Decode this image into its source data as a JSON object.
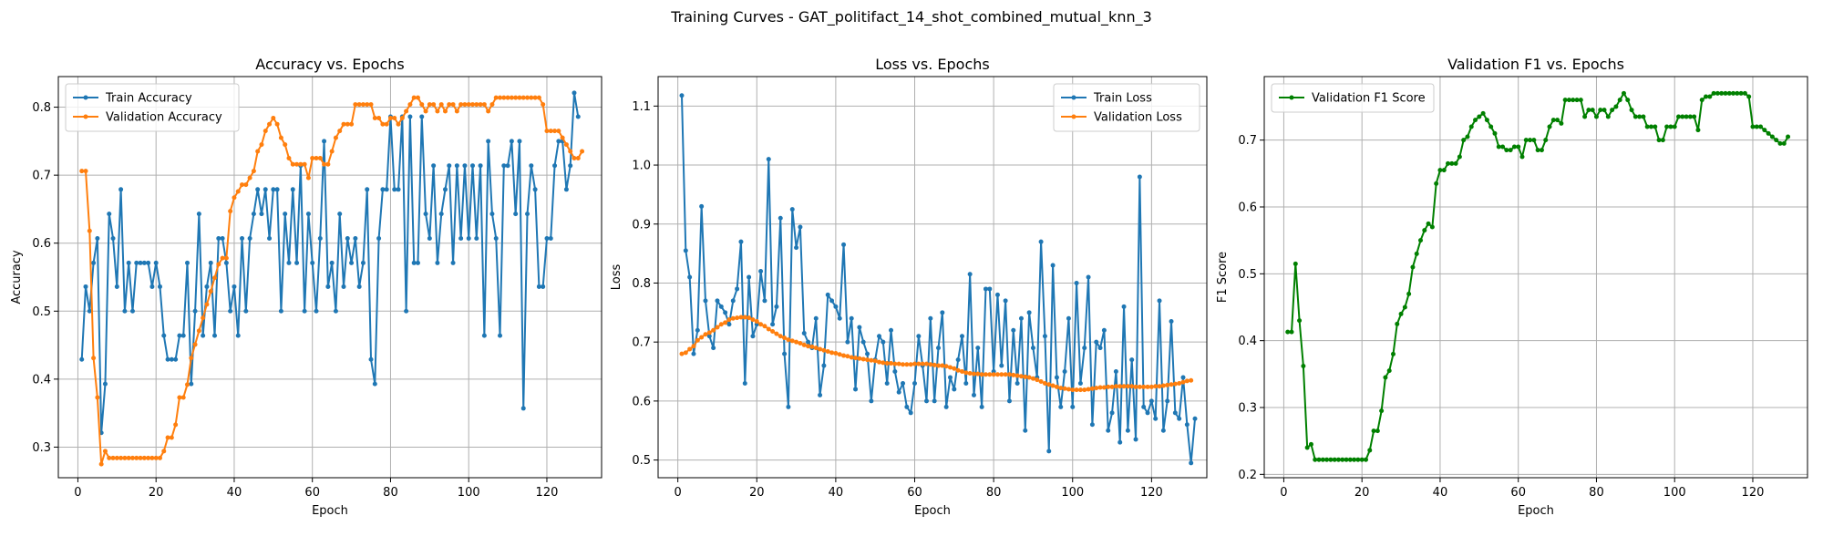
{
  "figure_title": "Training Curves - GAT_politifact_14_shot_combined_mutual_knn_3",
  "chart_data": [
    {
      "type": "line",
      "title": "Accuracy vs. Epochs",
      "xlabel": "Epoch",
      "ylabel": "Accuracy",
      "xlim": [
        -5,
        134
      ],
      "ylim": [
        0.255,
        0.845
      ],
      "xticks": [
        0,
        20,
        40,
        60,
        80,
        100,
        120
      ],
      "yticks": [
        0.3,
        0.4,
        0.5,
        0.6,
        0.7,
        0.8
      ],
      "ytick_labels": [
        "0.3",
        "0.4",
        "0.5",
        "0.6",
        "0.7",
        "0.8"
      ],
      "grid": true,
      "legend_position": "upper-left",
      "series": [
        {
          "name": "Train Accuracy",
          "color": "#1f77b4",
          "values": [
            0.429,
            0.536,
            0.5,
            0.571,
            0.607,
            0.321,
            0.393,
            0.643,
            0.607,
            0.536,
            0.679,
            0.5,
            0.571,
            0.5,
            0.571,
            0.571,
            0.571,
            0.571,
            0.536,
            0.571,
            0.536,
            0.464,
            0.429,
            0.429,
            0.429,
            0.464,
            0.464,
            0.571,
            0.393,
            0.5,
            0.643,
            0.464,
            0.536,
            0.571,
            0.464,
            0.607,
            0.607,
            0.571,
            0.5,
            0.536,
            0.464,
            0.607,
            0.5,
            0.607,
            0.643,
            0.679,
            0.643,
            0.679,
            0.607,
            0.679,
            0.679,
            0.5,
            0.643,
            0.571,
            0.679,
            0.571,
            0.714,
            0.5,
            0.643,
            0.571,
            0.5,
            0.607,
            0.75,
            0.536,
            0.571,
            0.5,
            0.643,
            0.536,
            0.607,
            0.571,
            0.607,
            0.536,
            0.571,
            0.679,
            0.429,
            0.393,
            0.607,
            0.679,
            0.679,
            0.786,
            0.679,
            0.679,
            0.786,
            0.5,
            0.786,
            0.571,
            0.571,
            0.786,
            0.643,
            0.607,
            0.714,
            0.571,
            0.643,
            0.679,
            0.714,
            0.571,
            0.714,
            0.607,
            0.714,
            0.607,
            0.714,
            0.607,
            0.714,
            0.464,
            0.75,
            0.643,
            0.607,
            0.464,
            0.714,
            0.714,
            0.75,
            0.643,
            0.75,
            0.357,
            0.643,
            0.714,
            0.679,
            0.536,
            0.536,
            0.607,
            0.607,
            0.714,
            0.75,
            0.75,
            0.679,
            0.714,
            0.821,
            0.786
          ]
        },
        {
          "name": "Validation Accuracy",
          "color": "#ff7f0e",
          "values": [
            0.706,
            0.706,
            0.618,
            0.431,
            0.373,
            0.275,
            0.294,
            0.284,
            0.284,
            0.284,
            0.284,
            0.284,
            0.284,
            0.284,
            0.284,
            0.284,
            0.284,
            0.284,
            0.284,
            0.284,
            0.284,
            0.294,
            0.314,
            0.314,
            0.333,
            0.373,
            0.373,
            0.392,
            0.431,
            0.451,
            0.471,
            0.49,
            0.51,
            0.529,
            0.549,
            0.569,
            0.578,
            0.578,
            0.647,
            0.667,
            0.676,
            0.686,
            0.686,
            0.696,
            0.706,
            0.735,
            0.745,
            0.765,
            0.775,
            0.784,
            0.775,
            0.755,
            0.745,
            0.725,
            0.716,
            0.716,
            0.716,
            0.716,
            0.696,
            0.725,
            0.725,
            0.725,
            0.716,
            0.716,
            0.735,
            0.755,
            0.765,
            0.775,
            0.775,
            0.775,
            0.804,
            0.804,
            0.804,
            0.804,
            0.804,
            0.784,
            0.784,
            0.775,
            0.775,
            0.784,
            0.784,
            0.775,
            0.784,
            0.794,
            0.804,
            0.814,
            0.814,
            0.804,
            0.794,
            0.804,
            0.804,
            0.794,
            0.804,
            0.794,
            0.804,
            0.804,
            0.794,
            0.804,
            0.804,
            0.804,
            0.804,
            0.804,
            0.804,
            0.804,
            0.794,
            0.804,
            0.814,
            0.814,
            0.814,
            0.814,
            0.814,
            0.814,
            0.814,
            0.814,
            0.814,
            0.814,
            0.814,
            0.814,
            0.804,
            0.765,
            0.765,
            0.765,
            0.765,
            0.755,
            0.745,
            0.735,
            0.725,
            0.725,
            0.735
          ]
        }
      ]
    },
    {
      "type": "line",
      "title": "Loss vs. Epochs",
      "xlabel": "Epoch",
      "ylabel": "Loss",
      "xlim": [
        -5,
        134
      ],
      "ylim": [
        0.47,
        1.15
      ],
      "xticks": [
        0,
        20,
        40,
        60,
        80,
        100,
        120
      ],
      "yticks": [
        0.5,
        0.6,
        0.7,
        0.8,
        0.9,
        1.0,
        1.1
      ],
      "ytick_labels": [
        "0.5",
        "0.6",
        "0.7",
        "0.8",
        "0.9",
        "1.0",
        "1.1"
      ],
      "grid": true,
      "legend_position": "upper-right",
      "series": [
        {
          "name": "Train Loss",
          "color": "#1f77b4",
          "values": [
            1.118,
            0.855,
            0.81,
            0.68,
            0.72,
            0.93,
            0.77,
            0.71,
            0.69,
            0.77,
            0.76,
            0.75,
            0.73,
            0.77,
            0.79,
            0.87,
            0.63,
            0.81,
            0.71,
            0.73,
            0.82,
            0.77,
            1.01,
            0.73,
            0.76,
            0.91,
            0.68,
            0.59,
            0.925,
            0.86,
            0.895,
            0.715,
            0.7,
            0.69,
            0.74,
            0.61,
            0.66,
            0.78,
            0.77,
            0.76,
            0.74,
            0.865,
            0.7,
            0.74,
            0.62,
            0.725,
            0.7,
            0.68,
            0.6,
            0.67,
            0.71,
            0.7,
            0.63,
            0.72,
            0.65,
            0.615,
            0.63,
            0.59,
            0.58,
            0.63,
            0.71,
            0.66,
            0.6,
            0.74,
            0.6,
            0.69,
            0.75,
            0.59,
            0.64,
            0.62,
            0.67,
            0.71,
            0.63,
            0.815,
            0.61,
            0.69,
            0.59,
            0.79,
            0.79,
            0.65,
            0.78,
            0.66,
            0.77,
            0.6,
            0.72,
            0.63,
            0.74,
            0.55,
            0.75,
            0.69,
            0.64,
            0.87,
            0.71,
            0.515,
            0.83,
            0.64,
            0.59,
            0.65,
            0.74,
            0.59,
            0.8,
            0.63,
            0.69,
            0.81,
            0.56,
            0.7,
            0.69,
            0.72,
            0.55,
            0.58,
            0.65,
            0.53,
            0.76,
            0.55,
            0.67,
            0.535,
            0.98,
            0.59,
            0.58,
            0.6,
            0.57,
            0.77,
            0.55,
            0.6,
            0.735,
            0.58,
            0.57,
            0.64,
            0.56,
            0.495,
            0.57
          ]
        },
        {
          "name": "Validation Loss",
          "color": "#ff7f0e",
          "values": [
            0.68,
            0.682,
            0.688,
            0.693,
            0.703,
            0.708,
            0.713,
            0.716,
            0.72,
            0.725,
            0.73,
            0.733,
            0.738,
            0.74,
            0.741,
            0.742,
            0.742,
            0.741,
            0.738,
            0.735,
            0.73,
            0.727,
            0.722,
            0.718,
            0.714,
            0.71,
            0.707,
            0.704,
            0.702,
            0.7,
            0.698,
            0.695,
            0.693,
            0.692,
            0.69,
            0.688,
            0.686,
            0.684,
            0.682,
            0.681,
            0.679,
            0.677,
            0.676,
            0.674,
            0.673,
            0.672,
            0.671,
            0.67,
            0.669,
            0.668,
            0.666,
            0.665,
            0.664,
            0.664,
            0.663,
            0.663,
            0.662,
            0.662,
            0.662,
            0.663,
            0.663,
            0.663,
            0.663,
            0.662,
            0.661,
            0.66,
            0.66,
            0.659,
            0.657,
            0.655,
            0.652,
            0.65,
            0.648,
            0.647,
            0.646,
            0.646,
            0.645,
            0.645,
            0.645,
            0.645,
            0.645,
            0.645,
            0.645,
            0.645,
            0.644,
            0.643,
            0.642,
            0.641,
            0.64,
            0.638,
            0.636,
            0.633,
            0.63,
            0.628,
            0.626,
            0.624,
            0.622,
            0.621,
            0.62,
            0.619,
            0.619,
            0.619,
            0.619,
            0.62,
            0.621,
            0.622,
            0.623,
            0.623,
            0.624,
            0.624,
            0.625,
            0.625,
            0.625,
            0.625,
            0.625,
            0.624,
            0.624,
            0.624,
            0.624,
            0.624,
            0.625,
            0.625,
            0.626,
            0.627,
            0.628,
            0.629,
            0.63,
            0.632,
            0.634,
            0.635
          ]
        }
      ]
    },
    {
      "type": "line",
      "title": "Validation F1 vs. Epochs",
      "xlabel": "Epoch",
      "ylabel": "F1 Score",
      "xlim": [
        -5,
        134
      ],
      "ylim": [
        0.195,
        0.795
      ],
      "xticks": [
        0,
        20,
        40,
        60,
        80,
        100,
        120
      ],
      "yticks": [
        0.2,
        0.3,
        0.4,
        0.5,
        0.6,
        0.7
      ],
      "ytick_labels": [
        "0.2",
        "0.3",
        "0.4",
        "0.5",
        "0.6",
        "0.7"
      ],
      "grid": true,
      "legend_position": "upper-left",
      "series": [
        {
          "name": "Validation F1 Score",
          "color": "#008000",
          "values": [
            0.413,
            0.413,
            0.515,
            0.43,
            0.362,
            0.24,
            0.245,
            0.222,
            0.222,
            0.222,
            0.222,
            0.222,
            0.222,
            0.222,
            0.222,
            0.222,
            0.222,
            0.222,
            0.222,
            0.222,
            0.222,
            0.236,
            0.265,
            0.265,
            0.295,
            0.345,
            0.355,
            0.38,
            0.425,
            0.44,
            0.45,
            0.47,
            0.51,
            0.53,
            0.55,
            0.565,
            0.575,
            0.57,
            0.635,
            0.655,
            0.655,
            0.665,
            0.665,
            0.665,
            0.675,
            0.7,
            0.705,
            0.72,
            0.73,
            0.735,
            0.74,
            0.73,
            0.72,
            0.71,
            0.69,
            0.69,
            0.685,
            0.685,
            0.69,
            0.69,
            0.675,
            0.7,
            0.7,
            0.7,
            0.685,
            0.685,
            0.7,
            0.72,
            0.73,
            0.73,
            0.725,
            0.76,
            0.76,
            0.76,
            0.76,
            0.76,
            0.735,
            0.745,
            0.745,
            0.735,
            0.745,
            0.745,
            0.735,
            0.745,
            0.75,
            0.76,
            0.77,
            0.76,
            0.745,
            0.735,
            0.735,
            0.735,
            0.72,
            0.72,
            0.72,
            0.7,
            0.7,
            0.72,
            0.72,
            0.72,
            0.735,
            0.735,
            0.735,
            0.735,
            0.735,
            0.715,
            0.76,
            0.765,
            0.765,
            0.77,
            0.77,
            0.77,
            0.77,
            0.77,
            0.77,
            0.77,
            0.77,
            0.77,
            0.765,
            0.72,
            0.72,
            0.72,
            0.715,
            0.71,
            0.705,
            0.7,
            0.695,
            0.695,
            0.705
          ]
        }
      ]
    }
  ]
}
